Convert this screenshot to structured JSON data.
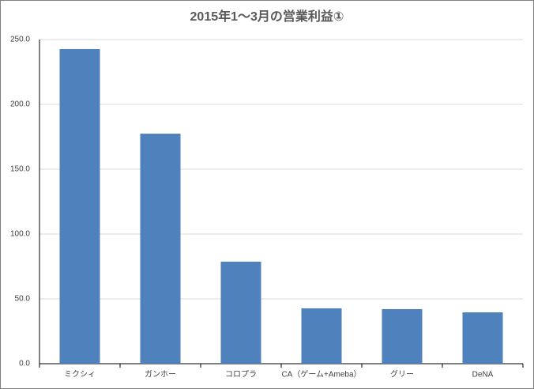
{
  "chart_data": {
    "type": "bar",
    "title": "2015年1～3月の営業利益①",
    "categories": [
      "ミクシィ",
      "ガンホー",
      "コロプラ",
      "CA（ゲーム+Ameba）",
      "グリー",
      "DeNA"
    ],
    "values": [
      242.7,
      177.4,
      78.7,
      42.7,
      42.1,
      39.6
    ],
    "color": "#4f81bd",
    "ylim": [
      0,
      250
    ],
    "yticks": [
      {
        "value": 0,
        "label": "0.0"
      },
      {
        "value": 50,
        "label": "50.0"
      },
      {
        "value": 100,
        "label": "100.0"
      },
      {
        "value": 150,
        "label": "150.0"
      },
      {
        "value": 200,
        "label": "200.0"
      },
      {
        "value": 250,
        "label": "250.0"
      }
    ],
    "grid": true
  }
}
